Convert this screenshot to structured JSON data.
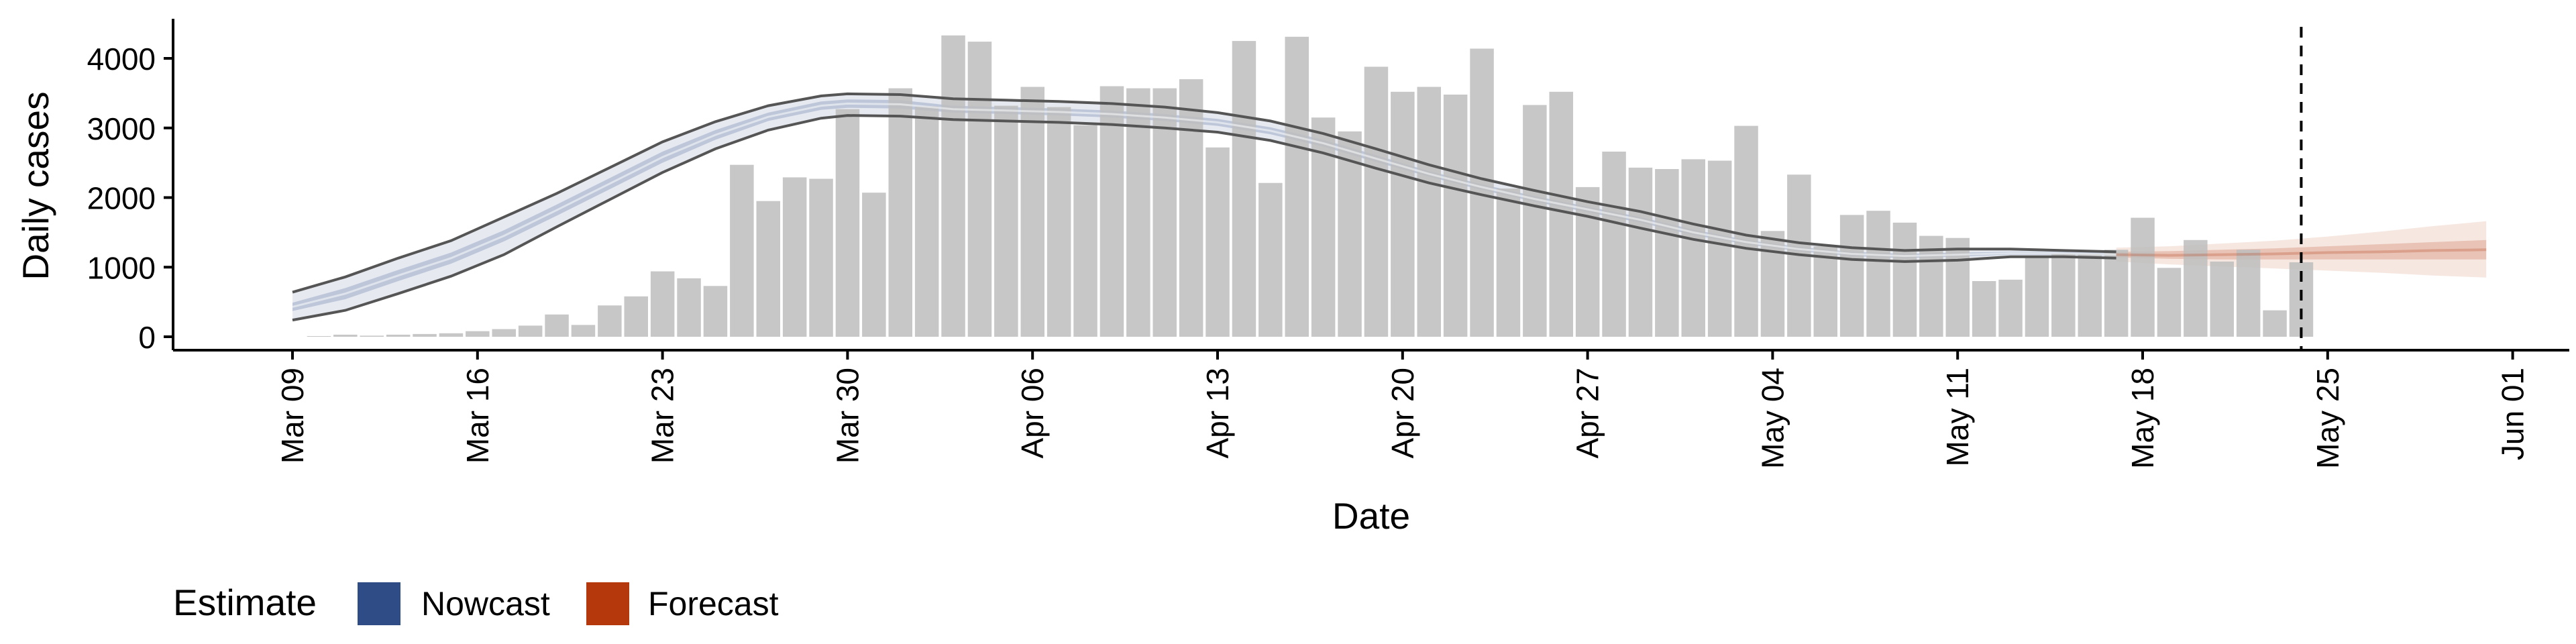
{
  "chart_data": {
    "type": "bar",
    "xlabel": "Date",
    "ylabel": "Daily cases",
    "ylim": [
      -200,
      4600
    ],
    "yticks": [
      0,
      1000,
      2000,
      3000,
      4000
    ],
    "yticklabels": [
      "0",
      "1000",
      "2000",
      "3000",
      "4000"
    ],
    "xticklabels": [
      "Mar 09",
      "Mar 16",
      "Mar 23",
      "Mar 30",
      "Apr 06",
      "Apr 13",
      "Apr 20",
      "Apr 27",
      "May 04",
      "May 11",
      "May 18",
      "May 25",
      "Jun 01"
    ],
    "xtick_days": [
      0,
      7,
      14,
      21,
      28,
      35,
      42,
      49,
      56,
      63,
      70,
      77,
      84
    ],
    "x_start_date": "Mar 09",
    "cutoff_date": "May 24",
    "grid": false,
    "legend": {
      "position": "bottom-left",
      "title": "Estimate",
      "items": [
        {
          "label": "Nowcast",
          "color": "#2f4c87"
        },
        {
          "label": "Forecast",
          "color": "#b5370c"
        }
      ]
    },
    "bar_color": "#bdbdbd",
    "bar_dates": [
      "Mar 10",
      "Mar 11",
      "Mar 12",
      "Mar 13",
      "Mar 14",
      "Mar 15",
      "Mar 16",
      "Mar 17",
      "Mar 18",
      "Mar 19",
      "Mar 20",
      "Mar 21",
      "Mar 22",
      "Mar 23",
      "Mar 24",
      "Mar 25",
      "Mar 26",
      "Mar 27",
      "Mar 28",
      "Mar 29",
      "Mar 30",
      "Mar 31",
      "Apr 01",
      "Apr 02",
      "Apr 03",
      "Apr 04",
      "Apr 05",
      "Apr 06",
      "Apr 07",
      "Apr 08",
      "Apr 09",
      "Apr 10",
      "Apr 11",
      "Apr 12",
      "Apr 13",
      "Apr 14",
      "Apr 15",
      "Apr 16",
      "Apr 17",
      "Apr 18",
      "Apr 19",
      "Apr 20",
      "Apr 21",
      "Apr 22",
      "Apr 23",
      "Apr 24",
      "Apr 25",
      "Apr 26",
      "Apr 27",
      "Apr 28",
      "Apr 29",
      "Apr 30",
      "May 01",
      "May 02",
      "May 03",
      "May 04",
      "May 05",
      "May 06",
      "May 07",
      "May 08",
      "May 09",
      "May 10",
      "May 11",
      "May 12",
      "May 13",
      "May 14",
      "May 15",
      "May 16",
      "May 17",
      "May 18",
      "May 19",
      "May 20",
      "May 21",
      "May 22",
      "May 23",
      "May 24"
    ],
    "bar_values": [
      0,
      30,
      15,
      30,
      40,
      50,
      80,
      110,
      160,
      320,
      170,
      450,
      580,
      940,
      840,
      730,
      2470,
      1950,
      2290,
      2270,
      3270,
      2070,
      3570,
      3310,
      4330,
      4240,
      3320,
      3590,
      3300,
      3040,
      3600,
      3570,
      3570,
      3700,
      2720,
      4250,
      2210,
      4310,
      3150,
      2950,
      3880,
      3520,
      3590,
      3480,
      4140,
      2130,
      3330,
      3520,
      2150,
      2660,
      2430,
      2410,
      2550,
      2530,
      3030,
      1520,
      2330,
      1300,
      1750,
      1810,
      1640,
      1450,
      1420,
      800,
      820,
      1140,
      1190,
      1190,
      1250,
      1710,
      990,
      1390,
      1080,
      1250,
      380,
      1070
    ],
    "series": [
      {
        "name": "Nowcast",
        "color": "#2f4c87",
        "dates": [
          "Mar 09",
          "Mar 11",
          "Mar 13",
          "Mar 15",
          "Mar 17",
          "Mar 19",
          "Mar 21",
          "Mar 23",
          "Mar 25",
          "Mar 27",
          "Mar 29",
          "Mar 30",
          "Apr 01",
          "Apr 03",
          "Apr 05",
          "Apr 07",
          "Apr 09",
          "Apr 11",
          "Apr 13",
          "Apr 15",
          "Apr 17",
          "Apr 19",
          "Apr 21",
          "Apr 23",
          "Apr 25",
          "Apr 27",
          "Apr 29",
          "May 01",
          "May 03",
          "May 05",
          "May 07",
          "May 09",
          "May 11",
          "May 13",
          "May 15",
          "May 17"
        ],
        "median": [
          430,
          620,
          880,
          1130,
          1450,
          1820,
          2200,
          2580,
          2900,
          3160,
          3320,
          3350,
          3340,
          3270,
          3250,
          3230,
          3200,
          3150,
          3080,
          2960,
          2780,
          2560,
          2340,
          2150,
          1980,
          1830,
          1680,
          1500,
          1360,
          1260,
          1190,
          1160,
          1180,
          1200,
          1200,
          1180
        ],
        "lower_90": [
          240,
          380,
          620,
          870,
          1180,
          1580,
          1970,
          2360,
          2700,
          2970,
          3140,
          3180,
          3170,
          3120,
          3100,
          3080,
          3050,
          3000,
          2940,
          2820,
          2640,
          2420,
          2210,
          2040,
          1880,
          1730,
          1560,
          1400,
          1270,
          1180,
          1110,
          1080,
          1100,
          1150,
          1150,
          1130
        ],
        "upper_90": [
          640,
          860,
          1130,
          1380,
          1720,
          2060,
          2430,
          2800,
          3090,
          3320,
          3460,
          3490,
          3480,
          3420,
          3400,
          3380,
          3350,
          3300,
          3220,
          3100,
          2920,
          2700,
          2470,
          2270,
          2100,
          1940,
          1800,
          1620,
          1460,
          1350,
          1280,
          1240,
          1260,
          1260,
          1240,
          1220
        ],
        "lower_50": [
          370,
          540,
          800,
          1050,
          1370,
          1740,
          2120,
          2500,
          2830,
          3100,
          3260,
          3290,
          3280,
          3220,
          3200,
          3180,
          3150,
          3100,
          3030,
          2910,
          2730,
          2510,
          2300,
          2110,
          1940,
          1790,
          1640,
          1460,
          1330,
          1230,
          1160,
          1130,
          1150,
          1180,
          1180,
          1160
        ],
        "upper_50": [
          490,
          700,
          960,
          1210,
          1530,
          1900,
          2280,
          2660,
          2970,
          3220,
          3380,
          3410,
          3400,
          3320,
          3300,
          3280,
          3250,
          3200,
          3130,
          3010,
          2830,
          2610,
          2380,
          2190,
          2020,
          1870,
          1720,
          1540,
          1390,
          1290,
          1220,
          1190,
          1210,
          1220,
          1220,
          1200
        ]
      },
      {
        "name": "Forecast",
        "color": "#b5370c",
        "dates": [
          "May 17",
          "May 19",
          "May 21",
          "May 23",
          "May 25",
          "May 27",
          "May 29",
          "May 31"
        ],
        "median": [
          1180,
          1170,
          1180,
          1190,
          1210,
          1220,
          1240,
          1250
        ],
        "lower_90": [
          1080,
          1040,
          1010,
          980,
          950,
          920,
          880,
          850
        ],
        "upper_90": [
          1280,
          1300,
          1340,
          1380,
          1440,
          1510,
          1590,
          1660
        ],
        "lower_50": [
          1140,
          1120,
          1110,
          1110,
          1110,
          1110,
          1110,
          1110
        ],
        "upper_50": [
          1220,
          1230,
          1250,
          1270,
          1300,
          1330,
          1360,
          1390
        ]
      }
    ]
  }
}
